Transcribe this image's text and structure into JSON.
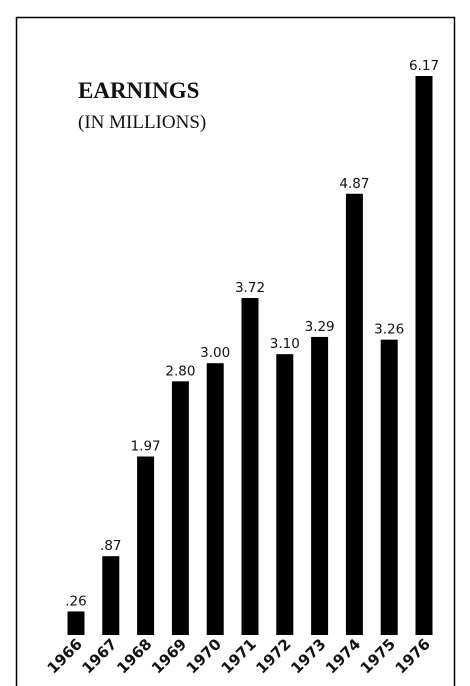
{
  "chart_data": {
    "type": "bar",
    "title": "EARNINGS",
    "subtitle": "(IN MILLIONS)",
    "xlabel": "",
    "ylabel": "",
    "categories": [
      "1966",
      "1967",
      "1968",
      "1969",
      "1970",
      "1971",
      "1972",
      "1973",
      "1974",
      "1975",
      "1976"
    ],
    "values": [
      0.26,
      0.87,
      1.97,
      2.8,
      3.0,
      3.72,
      3.1,
      3.29,
      4.87,
      3.26,
      6.17
    ],
    "value_labels": [
      ".26",
      ".87",
      "1.97",
      "2.80",
      "3.00",
      "3.72",
      "3.10",
      "3.29",
      "4.87",
      "3.26",
      "6.17"
    ],
    "ylim": [
      0,
      6.17
    ],
    "grid": false,
    "bar_color": "#000000",
    "frame_color": "#000000"
  }
}
